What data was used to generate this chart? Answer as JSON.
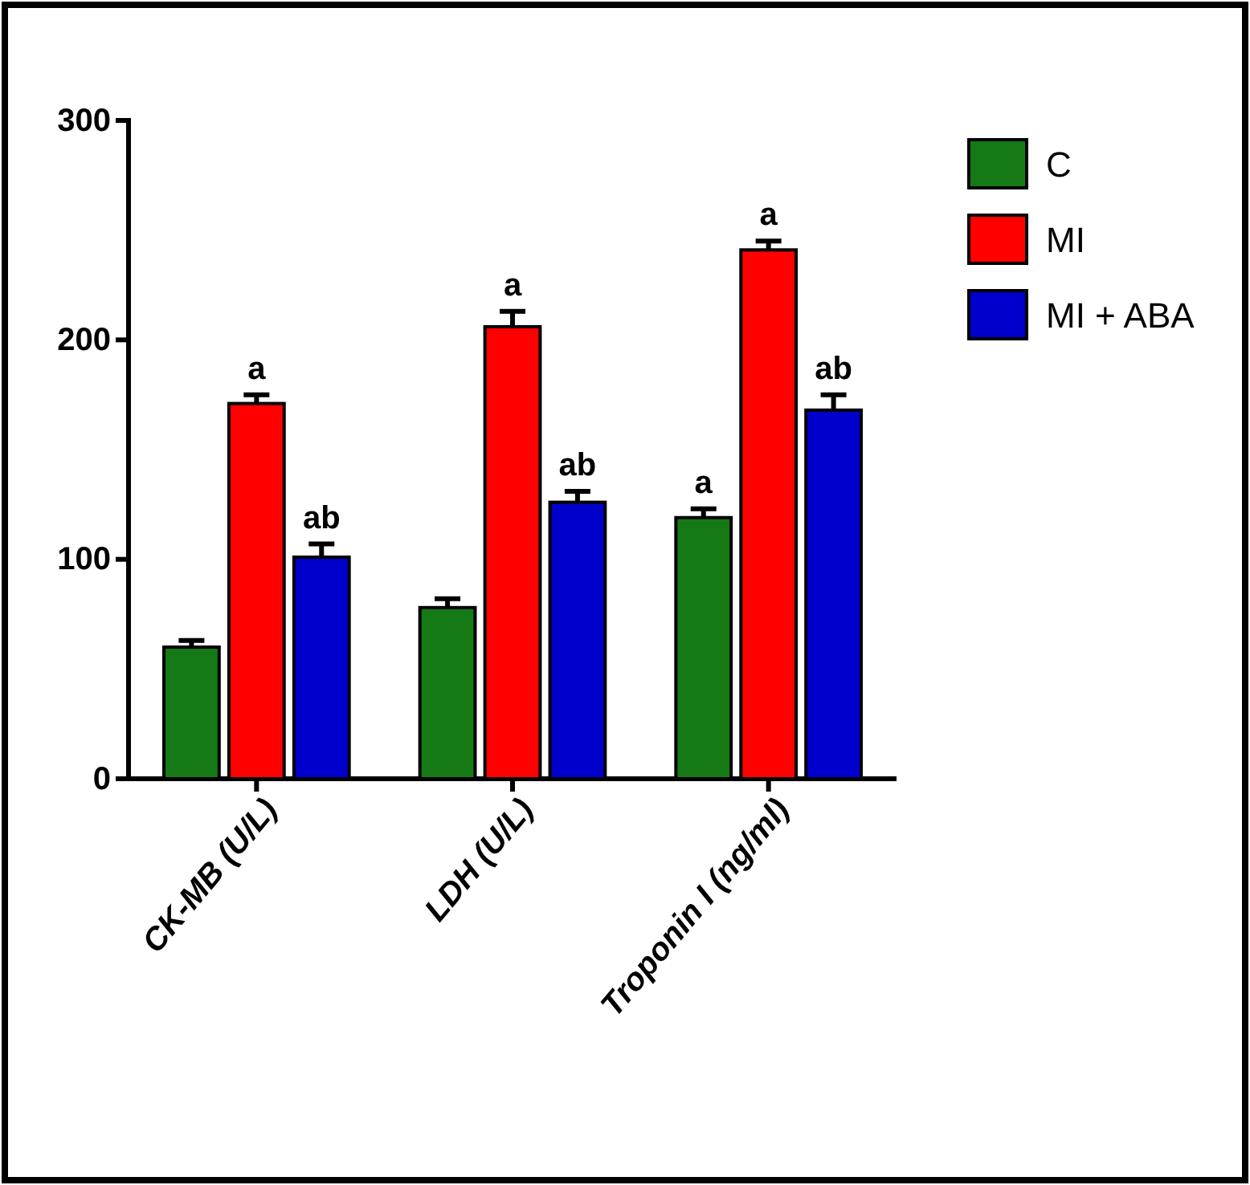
{
  "chart_data": {
    "type": "bar",
    "categories": [
      "CK-MB (U/L)",
      "LDH (U/L)",
      "Troponin I (ng/ml)"
    ],
    "series": [
      {
        "name": "C",
        "color": "#157a15",
        "values": [
          60,
          78,
          119
        ],
        "errors": [
          3,
          4,
          4
        ],
        "value_labels": [
          null,
          null,
          "a"
        ]
      },
      {
        "name": "MI",
        "color": "#ff0000",
        "values": [
          171,
          206,
          241
        ],
        "errors": [
          4,
          7,
          4
        ],
        "value_labels": [
          "a",
          "a",
          "a"
        ]
      },
      {
        "name": "MI + ABA",
        "color": "#0000cc",
        "values": [
          101,
          126,
          168
        ],
        "errors": [
          6,
          5,
          7
        ],
        "value_labels": [
          "ab",
          "ab",
          "ab"
        ]
      }
    ],
    "ylim": [
      0,
      300
    ],
    "yticks": [
      0,
      100,
      200,
      300
    ],
    "grid": false,
    "legend": "top right"
  }
}
